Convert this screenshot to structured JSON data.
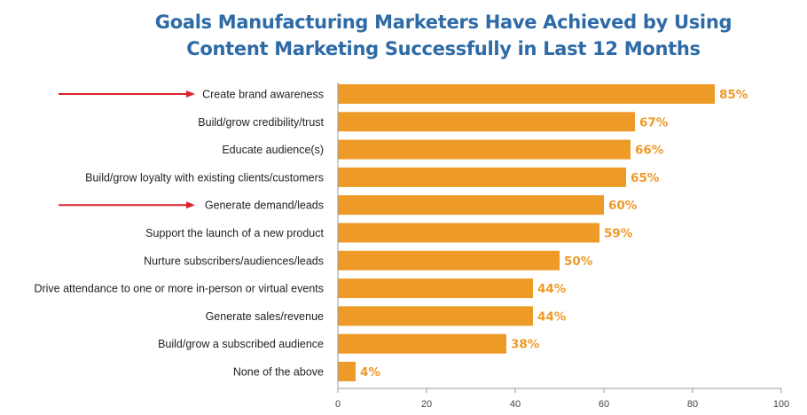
{
  "chart_data": {
    "type": "bar",
    "orientation": "horizontal",
    "title": [
      "Goals Manufacturing Marketers Have Achieved by Using",
      "Content Marketing Successfully in Last 12 Months"
    ],
    "categories": [
      "Create brand awareness",
      "Build/grow credibility/trust",
      "Educate audience(s)",
      "Build/grow loyalty with existing clients/customers",
      "Generate demand/leads",
      "Support the launch of a new product",
      "Nurture subscribers/audiences/leads",
      "Drive attendance to one or more in-person or virtual events",
      "Generate sales/revenue",
      "Build/grow a subscribed audience",
      "None of the above"
    ],
    "values": [
      85,
      67,
      66,
      65,
      60,
      59,
      50,
      44,
      44,
      38,
      4
    ],
    "value_labels": [
      "85%",
      "67%",
      "66%",
      "65%",
      "60%",
      "59%",
      "50%",
      "44%",
      "44%",
      "38%",
      "4%"
    ],
    "highlighted_categories": [
      "Create brand awareness",
      "Generate demand/leads"
    ],
    "xlim": [
      0,
      100
    ],
    "xticks": [
      0,
      20,
      40,
      60,
      80,
      100
    ],
    "xtick_labels": [
      "0",
      "20",
      "40",
      "60",
      "80",
      "100"
    ],
    "grid": false,
    "colors": {
      "bar": "#ee9a26",
      "value_label": "#ee9a26",
      "title": "#2e6ba6",
      "arrow": "#d8232a",
      "axis": "#999999",
      "text": "#222222"
    }
  }
}
